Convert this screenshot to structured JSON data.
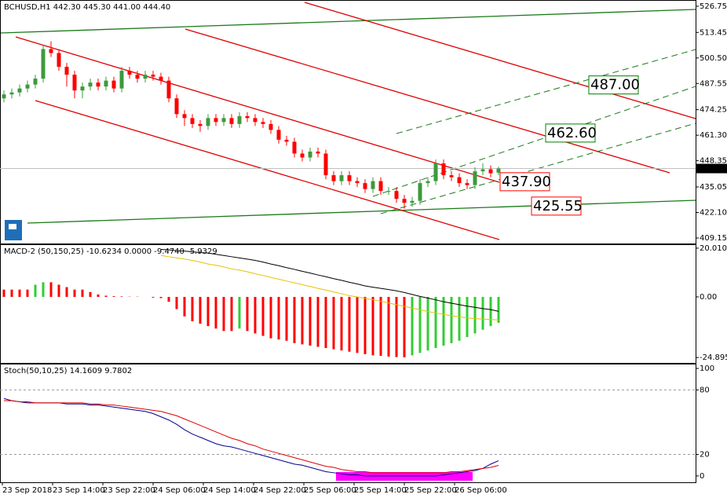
{
  "chart_data": [
    {
      "type": "candlestick",
      "title": "BCHUSD,H1  442.30 445.30 441.00 444.40",
      "ylim": [
        406.36,
        529.9
      ],
      "yticks": [
        526.75,
        513.45,
        {
          "value": 500.5,
          "label": "500.50"
        },
        487.55,
        474.25,
        {
          "value": 461.3,
          "label": "461.30"
        },
        448.35,
        435.05,
        {
          "value": 422.1,
          "label": "422.10"
        },
        409.15
      ],
      "up_color": "#3c9a3c",
      "down_color": "#ff0000",
      "open": [
        480,
        482,
        483,
        485,
        487,
        490,
        505,
        503,
        496,
        492,
        484,
        486,
        488,
        486,
        489,
        485,
        494,
        492,
        490,
        492,
        491,
        489,
        480,
        472,
        470,
        467,
        466,
        470,
        468,
        470,
        467,
        471,
        470,
        468,
        467,
        464,
        459,
        458,
        452,
        450,
        453,
        452,
        441,
        438,
        441,
        438,
        437,
        434,
        438,
        433,
        433,
        429,
        427,
        428,
        437,
        438,
        447,
        441,
        440,
        437,
        436,
        443,
        444,
        442.3
      ],
      "high": [
        484,
        485,
        487,
        489,
        492,
        507,
        509,
        505,
        498,
        494,
        488,
        490,
        490,
        491,
        491,
        496,
        496,
        494,
        494,
        494,
        493,
        491,
        482,
        474,
        472,
        469,
        472,
        472,
        472,
        472,
        473,
        473,
        472,
        470,
        469,
        466,
        461,
        460,
        454,
        455,
        455,
        454,
        443,
        443,
        443,
        440,
        439,
        440,
        440,
        435,
        435,
        431,
        430,
        439,
        440,
        449,
        449,
        443,
        442,
        439,
        445,
        447,
        446,
        445.3
      ],
      "low": [
        478,
        480,
        481,
        483,
        485,
        488,
        501,
        494,
        486,
        480,
        480,
        484,
        484,
        484,
        483,
        483,
        490,
        488,
        488,
        489,
        487,
        478,
        470,
        466,
        465,
        463,
        464,
        466,
        466,
        465,
        465,
        468,
        466,
        465,
        462,
        457,
        456,
        450,
        448,
        448,
        450,
        439,
        436,
        436,
        436,
        435,
        432,
        432,
        431,
        431,
        427,
        424,
        425,
        426,
        435,
        436,
        439,
        438,
        435,
        434,
        434,
        441,
        440,
        441
      ],
      "close": [
        482,
        483,
        485,
        487,
        490,
        505,
        503,
        496,
        492,
        484,
        486,
        488,
        486,
        489,
        485,
        494,
        492,
        490,
        492,
        491,
        489,
        480,
        472,
        470,
        467,
        466,
        470,
        468,
        470,
        467,
        471,
        470,
        468,
        467,
        464,
        459,
        458,
        452,
        450,
        453,
        452,
        441,
        438,
        441,
        438,
        437,
        434,
        438,
        433,
        433,
        429,
        427,
        428,
        437,
        438,
        447,
        441,
        440,
        437,
        436,
        443,
        444,
        442,
        444.4
      ],
      "current_price": {
        "value": 444.4,
        "label": "444.40"
      },
      "annotations": [
        {
          "value": 487,
          "label": "487.00",
          "color": "#008000"
        },
        {
          "value": 462.6,
          "label": "462.60",
          "color": "#008000"
        },
        {
          "value": 437.9,
          "label": "437.90",
          "color": "#ff0000"
        },
        {
          "value": 425.55,
          "label": "425.55",
          "color": "#ff0000"
        }
      ]
    },
    {
      "type": "macd",
      "title": "MACD-2 (50,150,25) -10.6234 0.0000 -9.4740 -5.9329",
      "ylim": [
        -27.1,
        21.6
      ],
      "yticks": [
        20.0103,
        {
          "value": 0,
          "label": "0.00"
        },
        -24.895
      ],
      "up_color": "#32cd32",
      "down_color": "#ff0000",
      "histogram": [
        3,
        3,
        3,
        3,
        5,
        6,
        6,
        5,
        4,
        3,
        3,
        2,
        1,
        0.5,
        0.3,
        0.2,
        0.1,
        0.1,
        0,
        -0.3,
        -0.5,
        -2,
        -5,
        -8,
        -10,
        -11,
        -12,
        -13,
        -14,
        -14,
        -13,
        -14,
        -15,
        -16,
        -17,
        -17.5,
        -18,
        -19,
        -19.5,
        -20,
        -20.5,
        -21,
        -21.5,
        -22,
        -22.5,
        -23,
        -23.5,
        -24,
        -24.2,
        -24.5,
        -24.7,
        -24.8,
        -24,
        -23,
        -22,
        -21,
        -20,
        -19,
        -18,
        -16.5,
        -15,
        -13.5,
        -12,
        -10.6234
      ],
      "lines": [
        {
          "color": "#000000",
          "values": [
            null,
            null,
            null,
            null,
            null,
            null,
            null,
            null,
            null,
            null,
            null,
            null,
            null,
            null,
            null,
            null,
            null,
            null,
            null,
            null,
            19.5,
            19.3,
            19,
            18.8,
            18.5,
            18.2,
            18,
            17.5,
            17,
            16.5,
            16,
            15.5,
            15,
            14.3,
            13.5,
            12.8,
            12,
            11.3,
            10.5,
            9.8,
            9,
            8.3,
            7.5,
            6.8,
            6,
            5.3,
            4.5,
            4,
            3.5,
            3,
            2.5,
            1.8,
            1,
            0.2,
            -0.5,
            -1.2,
            -2,
            -2.6,
            -3.2,
            -3.8,
            -4.3,
            -4.8,
            -5.2,
            -5.9329
          ]
        },
        {
          "color": "#e6c200",
          "values": [
            null,
            null,
            null,
            null,
            null,
            null,
            null,
            null,
            null,
            null,
            null,
            null,
            null,
            null,
            null,
            null,
            null,
            null,
            null,
            null,
            17,
            16.5,
            16,
            15.5,
            15,
            14.3,
            13.5,
            13,
            12.3,
            11.5,
            11,
            10.3,
            9.5,
            8.8,
            8,
            7.3,
            6.5,
            5.8,
            5,
            4.3,
            3.5,
            2.8,
            2,
            1.3,
            0.5,
            0,
            -0.6,
            -1.2,
            -1.8,
            -2.5,
            -3.2,
            -3.9,
            -4.6,
            -5.3,
            -6,
            -6.6,
            -7.2,
            -7.7,
            -8.2,
            -8.6,
            -8.9,
            -9.1,
            -9.3,
            -9.474
          ]
        }
      ]
    },
    {
      "type": "stochastic",
      "title": "Stoch(50,10,25) 14.1609 9.7802",
      "ylim": [
        -5.9,
        104.4
      ],
      "yticks": [
        100,
        80,
        20,
        0
      ],
      "levels": [
        80,
        20
      ],
      "series": [
        {
          "color": "#00008b",
          "values": [
            72,
            70,
            69,
            68,
            68,
            68,
            68,
            68,
            67,
            67,
            67,
            66,
            66,
            65,
            64,
            63,
            62,
            61,
            60,
            58,
            55,
            52,
            48,
            43,
            39,
            36,
            33,
            30,
            28,
            27,
            25,
            23,
            21,
            19,
            17,
            15,
            13,
            11,
            10,
            8,
            6,
            4,
            3,
            2,
            1,
            1,
            0,
            0,
            0,
            0,
            0,
            0,
            0,
            0,
            0,
            0,
            1,
            2,
            3,
            4,
            5,
            7,
            11,
            14.1609
          ]
        },
        {
          "color": "#e00000",
          "values": [
            70,
            70,
            69,
            69,
            68,
            68,
            68,
            68,
            68,
            68,
            68,
            67,
            67,
            66,
            66,
            65,
            64,
            63,
            62,
            61,
            60,
            58,
            56,
            53,
            50,
            47,
            44,
            41,
            38,
            35,
            33,
            30,
            28,
            25,
            23,
            21,
            19,
            17,
            15,
            13,
            11,
            9,
            8,
            6,
            5,
            4,
            4,
            3,
            3,
            3,
            3,
            3,
            3,
            3,
            3,
            3,
            3,
            4,
            4,
            5,
            6,
            7,
            8,
            9.7802
          ]
        }
      ],
      "x_axis_labels": [
        "23 Sep 2018",
        "23 Sep 14:00",
        "23 Sep 22:00",
        "24 Sep 06:00",
        "24 Sep 14:00",
        "24 Sep 22:00",
        "25 Sep 06:00",
        "25 Sep 14:00",
        "25 Sep 22:00",
        "26 Sep 06:00"
      ]
    }
  ]
}
